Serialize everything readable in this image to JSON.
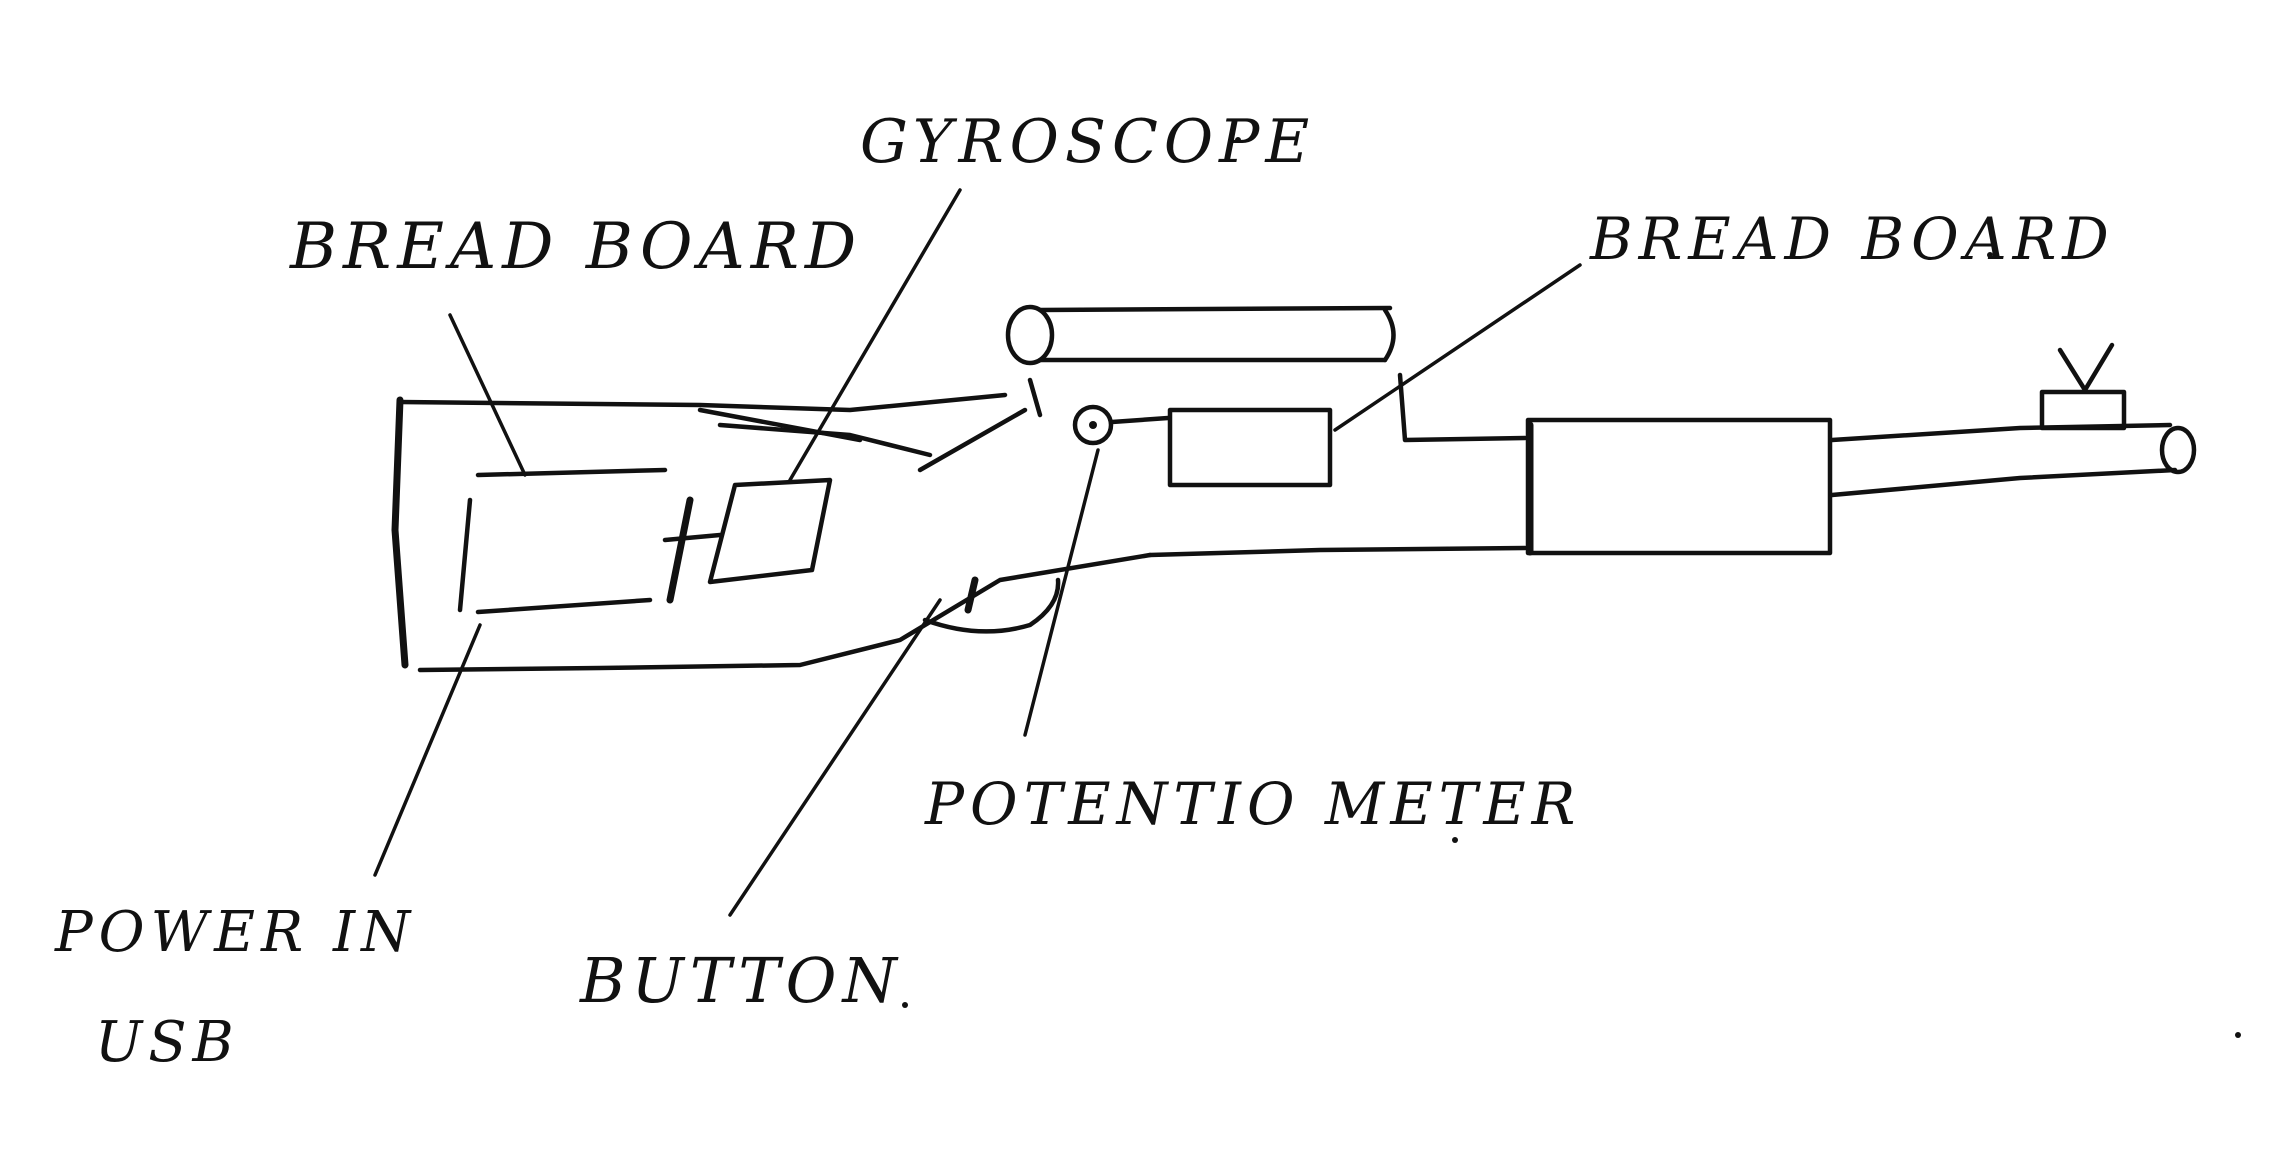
{
  "labels": {
    "gyroscope": "GYROSCOPE",
    "breadboard_left": "BREAD BOARD",
    "breadboard_right": "BREAD BOARD",
    "potentiometer": "POTENTIO METER",
    "power_in": "POWER IN",
    "usb": "USB",
    "button": "BUTTON"
  }
}
